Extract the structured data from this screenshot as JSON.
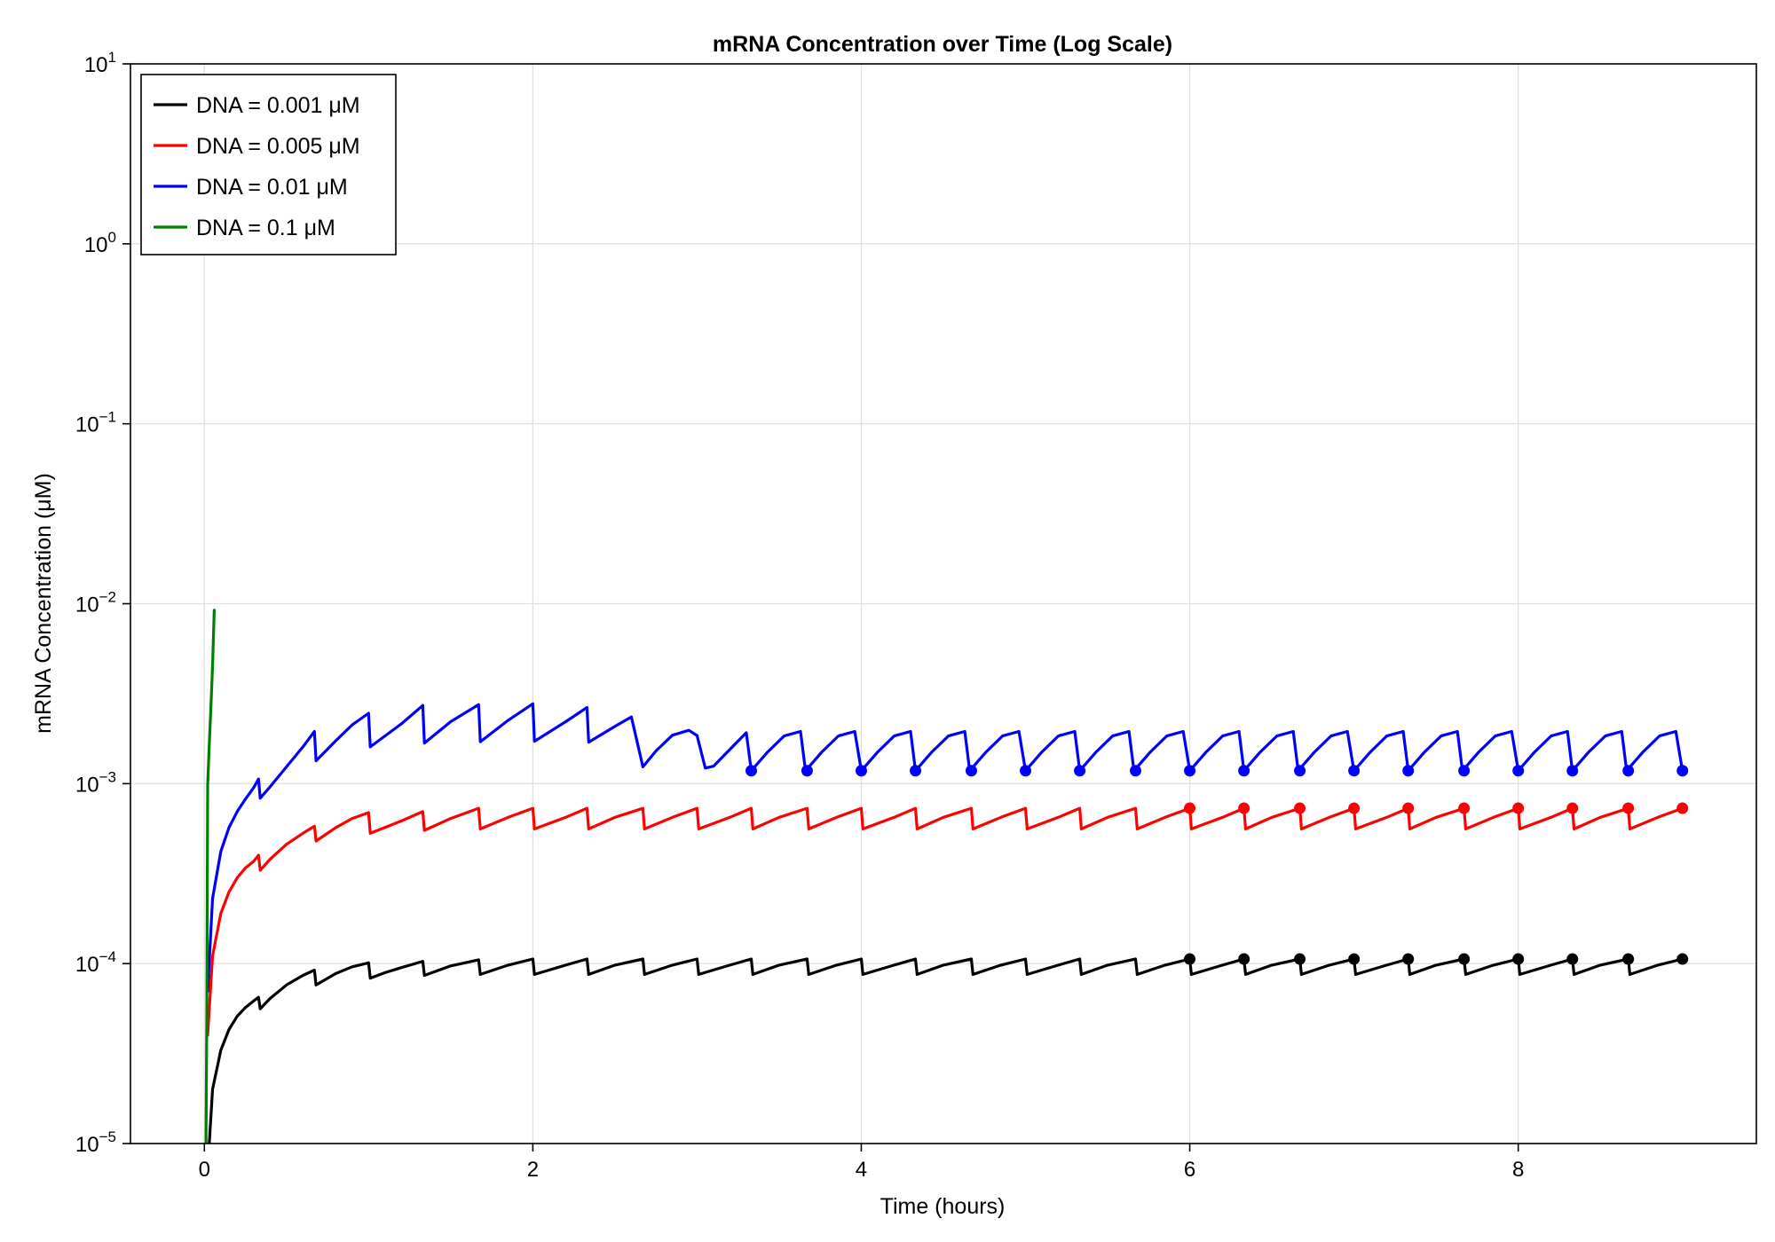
{
  "chart_data": {
    "type": "line",
    "title": "mRNA Concentration over Time (Log Scale)",
    "xlabel": "Time (hours)",
    "ylabel": "mRNA Concentration (μM)",
    "xlim": [
      -0.45,
      9.45
    ],
    "ylim": [
      1e-05,
      10
    ],
    "yscale": "log",
    "grid": true,
    "legend_position": "top-left",
    "x_ticks": [
      0,
      2,
      4,
      6,
      8
    ],
    "y_ticks": [
      {
        "value": 1e-05,
        "base": "10",
        "exp": "−5"
      },
      {
        "value": 0.0001,
        "base": "10",
        "exp": "−4"
      },
      {
        "value": 0.001,
        "base": "10",
        "exp": "−3"
      },
      {
        "value": 0.01,
        "base": "10",
        "exp": "−2"
      },
      {
        "value": 0.1,
        "base": "10",
        "exp": "−1"
      },
      {
        "value": 1,
        "base": "10",
        "exp": "0"
      },
      {
        "value": 10,
        "base": "10",
        "exp": "1"
      }
    ],
    "dose_interval_hours": 0.3333,
    "series": [
      {
        "name": "DNA = 0.001 μM",
        "color": "#000000",
        "x": [
          0.03,
          0.05,
          0.1,
          0.15,
          0.2,
          0.25,
          0.3,
          0.33,
          0.34,
          0.4,
          0.5,
          0.6,
          0.67,
          0.68,
          0.8,
          0.9,
          1.0,
          1.01,
          1.1,
          1.2,
          1.33,
          1.34,
          1.5,
          1.67,
          1.68,
          1.85,
          2.0,
          2.01,
          2.2,
          2.33,
          2.34,
          2.5,
          2.67,
          2.68,
          2.85,
          3.0,
          3.01,
          3.2,
          3.33,
          3.34,
          3.5,
          3.67,
          3.68,
          3.85,
          4.0,
          4.01,
          4.2,
          4.33,
          4.34,
          4.5,
          4.67,
          4.68,
          4.85,
          5.0,
          5.01,
          5.2,
          5.33,
          5.34,
          5.5,
          5.67,
          5.68,
          5.85,
          6.0,
          6.01,
          6.2,
          6.33,
          6.34,
          6.5,
          6.67,
          6.68,
          6.85,
          7.0,
          7.01,
          7.2,
          7.33,
          7.34,
          7.5,
          7.67,
          7.68,
          7.85,
          8.0,
          8.01,
          8.2,
          8.33,
          8.34,
          8.5,
          8.67,
          8.68,
          8.85,
          9.0
        ],
        "y": [
          1e-05,
          2e-05,
          3.3e-05,
          4.3e-05,
          5.1e-05,
          5.7e-05,
          6.2e-05,
          6.5e-05,
          5.6e-05,
          6.4e-05,
          7.6e-05,
          8.6e-05,
          9.2e-05,
          7.6e-05,
          8.8e-05,
          9.6e-05,
          0.000101,
          8.3e-05,
          8.9e-05,
          9.5e-05,
          0.000103,
          8.6e-05,
          9.7e-05,
          0.000105,
          8.7e-05,
          9.8e-05,
          0.000106,
          8.7e-05,
          9.8e-05,
          0.000106,
          8.7e-05,
          9.8e-05,
          0.000106,
          8.7e-05,
          9.8e-05,
          0.000106,
          8.7e-05,
          9.8e-05,
          0.000106,
          8.7e-05,
          9.8e-05,
          0.000106,
          8.7e-05,
          9.8e-05,
          0.000106,
          8.7e-05,
          9.8e-05,
          0.000106,
          8.7e-05,
          9.8e-05,
          0.000106,
          8.7e-05,
          9.8e-05,
          0.000106,
          8.7e-05,
          9.8e-05,
          0.000106,
          8.7e-05,
          9.8e-05,
          0.000106,
          8.7e-05,
          9.8e-05,
          0.000106,
          8.7e-05,
          9.8e-05,
          0.000106,
          8.7e-05,
          9.8e-05,
          0.000106,
          8.7e-05,
          9.8e-05,
          0.000106,
          8.7e-05,
          9.8e-05,
          0.000106,
          8.7e-05,
          9.8e-05,
          0.000106,
          8.7e-05,
          9.8e-05,
          0.000106,
          8.7e-05,
          9.8e-05,
          0.000106,
          8.7e-05,
          9.8e-05,
          0.000106,
          8.7e-05,
          9.8e-05,
          0.000106
        ],
        "markers_x": [
          6.0,
          6.33,
          6.67,
          7.0,
          7.33,
          7.67,
          8.0,
          8.33,
          8.67,
          9.0
        ],
        "markers_y": [
          0.000106,
          0.000106,
          0.000106,
          0.000106,
          0.000106,
          0.000106,
          0.000106,
          0.000106,
          0.000106,
          0.000106
        ]
      },
      {
        "name": "DNA = 0.005 μM",
        "color": "#ff0000",
        "x": [
          0.02,
          0.05,
          0.1,
          0.15,
          0.2,
          0.25,
          0.3,
          0.33,
          0.34,
          0.4,
          0.5,
          0.6,
          0.67,
          0.68,
          0.8,
          0.9,
          1.0,
          1.01,
          1.2,
          1.33,
          1.34,
          1.5,
          1.67,
          1.68,
          1.85,
          2.0,
          2.01,
          2.2,
          2.33,
          2.34,
          2.5,
          2.67,
          2.68,
          2.85,
          3.0,
          3.01,
          3.2,
          3.33,
          3.34,
          3.5,
          3.67,
          3.68,
          3.85,
          4.0,
          4.01,
          4.2,
          4.33,
          4.34,
          4.5,
          4.67,
          4.68,
          4.85,
          5.0,
          5.01,
          5.2,
          5.33,
          5.34,
          5.5,
          5.67,
          5.68,
          5.85,
          6.0,
          6.01,
          6.2,
          6.33,
          6.34,
          6.5,
          6.67,
          6.68,
          6.85,
          7.0,
          7.01,
          7.2,
          7.33,
          7.34,
          7.5,
          7.67,
          7.68,
          7.85,
          8.0,
          8.01,
          8.2,
          8.33,
          8.34,
          8.5,
          8.67,
          8.68,
          8.85,
          9.0
        ],
        "y": [
          4e-05,
          0.00011,
          0.00019,
          0.00025,
          0.0003,
          0.00034,
          0.00037,
          0.0004,
          0.00033,
          0.00038,
          0.00046,
          0.00053,
          0.00058,
          0.00048,
          0.00057,
          0.00064,
          0.00069,
          0.00053,
          0.00062,
          0.0007,
          0.00055,
          0.00064,
          0.00073,
          0.00056,
          0.00065,
          0.00073,
          0.00056,
          0.00065,
          0.00073,
          0.00056,
          0.00065,
          0.00073,
          0.00056,
          0.00065,
          0.00073,
          0.00056,
          0.00065,
          0.00073,
          0.00056,
          0.00065,
          0.00073,
          0.00056,
          0.00065,
          0.00073,
          0.00056,
          0.00065,
          0.00073,
          0.00056,
          0.00065,
          0.00073,
          0.00056,
          0.00065,
          0.00073,
          0.00056,
          0.00065,
          0.00073,
          0.00056,
          0.00065,
          0.00073,
          0.00056,
          0.00065,
          0.00073,
          0.00056,
          0.00065,
          0.00073,
          0.00056,
          0.00065,
          0.00073,
          0.00056,
          0.00065,
          0.00073,
          0.00056,
          0.00065,
          0.00073,
          0.00056,
          0.00065,
          0.00073,
          0.00056,
          0.00065,
          0.00073,
          0.00056,
          0.00065,
          0.00073,
          0.00056,
          0.00065,
          0.00073,
          0.00056,
          0.00065,
          0.00073
        ],
        "markers_x": [
          6.0,
          6.33,
          6.67,
          7.0,
          7.33,
          7.67,
          8.0,
          8.33,
          8.67,
          9.0
        ],
        "markers_y": [
          0.00073,
          0.00073,
          0.00073,
          0.00073,
          0.00073,
          0.00073,
          0.00073,
          0.00073,
          0.00073,
          0.00073
        ]
      },
      {
        "name": "DNA = 0.01 μM",
        "color": "#0000ff",
        "x": [
          0.02,
          0.05,
          0.1,
          0.15,
          0.2,
          0.25,
          0.3,
          0.33,
          0.34,
          0.4,
          0.5,
          0.6,
          0.67,
          0.68,
          0.8,
          0.9,
          1.0,
          1.01,
          1.2,
          1.33,
          1.34,
          1.5,
          1.67,
          1.68,
          1.85,
          2.0,
          2.01,
          2.2,
          2.33,
          2.34,
          2.5,
          2.6,
          2.67,
          2.75,
          2.85,
          2.95,
          3.0,
          3.05,
          3.1,
          3.2,
          3.3,
          3.33,
          3.43,
          3.53,
          3.63,
          3.66,
          3.76,
          3.86,
          3.96,
          4.0,
          4.1,
          4.2,
          4.3,
          4.33,
          4.43,
          4.53,
          4.63,
          4.66,
          4.76,
          4.86,
          4.96,
          5.0,
          5.1,
          5.2,
          5.3,
          5.33,
          5.43,
          5.53,
          5.63,
          5.66,
          5.76,
          5.86,
          5.96,
          6.0,
          6.1,
          6.2,
          6.3,
          6.33,
          6.43,
          6.53,
          6.63,
          6.66,
          6.76,
          6.86,
          6.96,
          7.0,
          7.1,
          7.2,
          7.3,
          7.33,
          7.43,
          7.53,
          7.63,
          7.66,
          7.76,
          7.86,
          7.96,
          8.0,
          8.1,
          8.2,
          8.3,
          8.33,
          8.43,
          8.53,
          8.63,
          8.66,
          8.76,
          8.86,
          8.96,
          9.0
        ],
        "y": [
          7e-05,
          0.00023,
          0.00042,
          0.00057,
          0.0007,
          0.00082,
          0.00095,
          0.00106,
          0.00083,
          0.00096,
          0.00124,
          0.0016,
          0.00195,
          0.00134,
          0.00173,
          0.00212,
          0.00246,
          0.0016,
          0.00215,
          0.00272,
          0.00168,
          0.00221,
          0.00275,
          0.00171,
          0.00225,
          0.00278,
          0.00172,
          0.00221,
          0.00265,
          0.0017,
          0.00208,
          0.00235,
          0.00124,
          0.00152,
          0.00186,
          0.00198,
          0.00185,
          0.00122,
          0.00125,
          0.00155,
          0.00192,
          0.00118,
          0.0015,
          0.00184,
          0.00195,
          0.00118,
          0.0015,
          0.00184,
          0.00195,
          0.00118,
          0.0015,
          0.00184,
          0.00195,
          0.00118,
          0.0015,
          0.00184,
          0.00195,
          0.00118,
          0.0015,
          0.00184,
          0.00195,
          0.00118,
          0.0015,
          0.00184,
          0.00195,
          0.00118,
          0.0015,
          0.00184,
          0.00195,
          0.00118,
          0.0015,
          0.00184,
          0.00195,
          0.00118,
          0.0015,
          0.00184,
          0.00195,
          0.00118,
          0.0015,
          0.00184,
          0.00195,
          0.00118,
          0.0015,
          0.00184,
          0.00195,
          0.00118,
          0.0015,
          0.00184,
          0.00195,
          0.00118,
          0.0015,
          0.00184,
          0.00195,
          0.00118,
          0.0015,
          0.00184,
          0.00195,
          0.00118,
          0.0015,
          0.00184,
          0.00195,
          0.00118,
          0.0015,
          0.00184,
          0.00195,
          0.00118,
          0.0015,
          0.00184,
          0.00195,
          0.00118
        ],
        "markers_x": [
          3.33,
          3.67,
          4.0,
          4.33,
          4.67,
          5.0,
          5.33,
          5.67,
          6.0,
          6.33,
          6.67,
          7.0,
          7.33,
          7.67,
          8.0,
          8.33,
          8.67,
          9.0
        ],
        "markers_y": [
          0.00118,
          0.00118,
          0.00118,
          0.00118,
          0.00118,
          0.00118,
          0.00118,
          0.00118,
          0.00118,
          0.00118,
          0.00118,
          0.00118,
          0.00118,
          0.00118,
          0.00118,
          0.00118,
          0.00118,
          0.00118
        ]
      },
      {
        "name": "DNA = 0.1 μM",
        "color": "#008000",
        "x": [
          0.01,
          0.015,
          0.02,
          0.03,
          0.04,
          0.05,
          0.06
        ],
        "y": [
          1e-05,
          5e-05,
          0.00098,
          0.00165,
          0.0027,
          0.0045,
          0.0092
        ],
        "markers_x": [],
        "markers_y": []
      }
    ]
  }
}
